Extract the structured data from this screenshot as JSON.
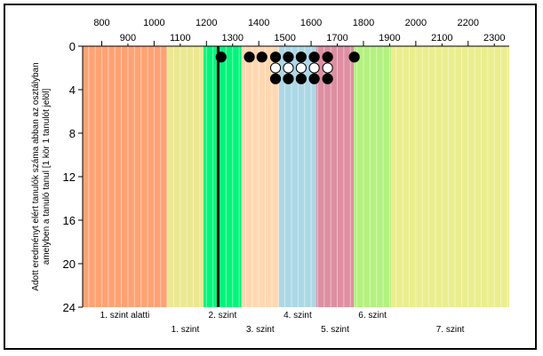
{
  "chart_data": {
    "type": "scatter",
    "ylabel": "Adott eredményt elért tanulók száma abban az osztályban amelyben a tanuló tanul [1 kör 1 tanulót jelöl]",
    "x_ticks_top": [
      800,
      1000,
      1200,
      1400,
      1600,
      1800,
      2000,
      2200
    ],
    "x_ticks_bottom": [
      900,
      1100,
      1300,
      1500,
      1700,
      1900,
      2100,
      2300
    ],
    "y_ticks": [
      0,
      4,
      8,
      12,
      16,
      20,
      24
    ],
    "xlim": [
      727,
      2357
    ],
    "ylim": [
      0,
      24
    ],
    "y_inverted": true,
    "bands": [
      {
        "label": "1. szint alatti",
        "x_from": 727,
        "x_to": 1049,
        "color": "#ffa273",
        "row": 0
      },
      {
        "label": "1. szint",
        "x_from": 1049,
        "x_to": 1189,
        "color": "#ebe891",
        "row": 1
      },
      {
        "label": "2. szint",
        "x_from": 1189,
        "x_to": 1334,
        "color": "#00f57a",
        "row": 0
      },
      {
        "label": "3. szint",
        "x_from": 1334,
        "x_to": 1477,
        "color": "#ffd8b1",
        "row": 1
      },
      {
        "label": "4. szint",
        "x_from": 1477,
        "x_to": 1620,
        "color": "#acd8e6",
        "row": 0
      },
      {
        "label": "5. szint",
        "x_from": 1620,
        "x_to": 1763,
        "color": "#de8fa2",
        "row": 1
      },
      {
        "label": "6. szint",
        "x_from": 1763,
        "x_to": 1906,
        "color": "#b4f17f",
        "row": 0
      },
      {
        "label": "7. szint",
        "x_from": 1906,
        "x_to": 2357,
        "color": "#ebee8d",
        "row": 1
      }
    ],
    "reference_line_x": 1245,
    "points": [
      {
        "x": 1256,
        "y": 1,
        "filled": true
      },
      {
        "x": 1364,
        "y": 1,
        "filled": true
      },
      {
        "x": 1412,
        "y": 1,
        "filled": true
      },
      {
        "x": 1464,
        "y": 1,
        "filled": true
      },
      {
        "x": 1464,
        "y": 2,
        "filled": false
      },
      {
        "x": 1464,
        "y": 3,
        "filled": true
      },
      {
        "x": 1513,
        "y": 1,
        "filled": true
      },
      {
        "x": 1513,
        "y": 2,
        "filled": false
      },
      {
        "x": 1513,
        "y": 3,
        "filled": true
      },
      {
        "x": 1562,
        "y": 1,
        "filled": true
      },
      {
        "x": 1562,
        "y": 2,
        "filled": false
      },
      {
        "x": 1562,
        "y": 3,
        "filled": true
      },
      {
        "x": 1612,
        "y": 1,
        "filled": true
      },
      {
        "x": 1612,
        "y": 2,
        "filled": false
      },
      {
        "x": 1612,
        "y": 3,
        "filled": true
      },
      {
        "x": 1663,
        "y": 1,
        "filled": true
      },
      {
        "x": 1663,
        "y": 2,
        "filled": false
      },
      {
        "x": 1663,
        "y": 3,
        "filled": true
      },
      {
        "x": 1765,
        "y": 1,
        "filled": true
      }
    ],
    "grid": {
      "vertical": true,
      "horizontal": false
    }
  }
}
